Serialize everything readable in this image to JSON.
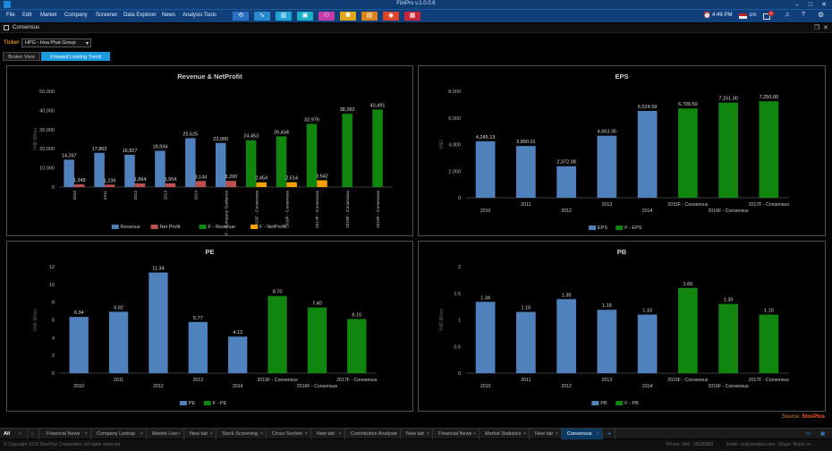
{
  "window": {
    "title": "FiinPro v.1.0.0.6"
  },
  "menu": [
    "File",
    "Edit",
    "Market",
    "Company",
    "Screener",
    "Data Explorer",
    "News",
    "Analysis Tools"
  ],
  "toolbar": [
    {
      "icon": "refresh-icon",
      "glyph": "⟲",
      "color": "#2a6fc2"
    },
    {
      "icon": "line-chart-icon",
      "glyph": "∿",
      "color": "#2a8ad0"
    },
    {
      "icon": "bar-growth-icon",
      "glyph": "▥",
      "color": "#22a3d6"
    },
    {
      "icon": "monitor-icon",
      "glyph": "▣",
      "color": "#1fb0c8"
    },
    {
      "icon": "people-icon",
      "glyph": "⚇",
      "color": "#c23aa7"
    },
    {
      "icon": "group-icon",
      "glyph": "⚉",
      "color": "#e0a61a"
    },
    {
      "icon": "briefcase-icon",
      "glyph": "▤",
      "color": "#d9821e"
    },
    {
      "icon": "target-icon",
      "glyph": "◉",
      "color": "#d8452a"
    },
    {
      "icon": "stats-icon",
      "glyph": "▦",
      "color": "#c6283a"
    }
  ],
  "topright": {
    "time": "4:49 PM",
    "lang": "EN",
    "notif": "1"
  },
  "panel": {
    "title": "Consensus"
  },
  "ticker": {
    "label": "Ticker",
    "value": "HPG - Hoa Phat Group"
  },
  "view_tabs": [
    "Broker View",
    "Forward Looking Trend"
  ],
  "colors": {
    "blue": "#4f81bd",
    "red": "#c0504d",
    "green": "#11860f",
    "orange": "#f5a000"
  },
  "source": {
    "prefix": "Source: ",
    "brand": "StoxPlus"
  },
  "bottom_tabs": [
    "Financial News",
    "Company Lookup",
    "Market Live",
    "New tab",
    "Stock Screening",
    "Cross Section",
    "New tab",
    "Contribution Analysis",
    "New tab",
    "Financial News",
    "Market Statistics",
    "New tab",
    "Consensus"
  ],
  "bottom_all": "All",
  "status": {
    "copyright": "© Copyright 2015 StoxPlus Corporation. All rights reserved",
    "phone": "Phone: 844 - 35620982",
    "email": "Email: cs@stoxplus.com",
    "skype": "Skype: fiinpro.cs"
  },
  "chart_data": [
    {
      "type": "bar",
      "title": "Revenue & NetProfit",
      "ylabel": "VND Billion",
      "ylim": [
        0,
        50000
      ],
      "yticks": [
        0,
        10000,
        20000,
        30000,
        40000,
        50000
      ],
      "categories": [
        "2010",
        "2011",
        "2012",
        "2013",
        "2014",
        "2014F - Company Guidance",
        "2015F - Consensus",
        "2016F - Consensus",
        "2017F - Consensus",
        "2018F - Consensus",
        "2019F - Consensus"
      ],
      "series": [
        {
          "name": "Revenue",
          "values": [
            14267,
            17852,
            16827,
            18934,
            25525,
            23000,
            null,
            null,
            null,
            null,
            null
          ]
        },
        {
          "name": "Net Profit",
          "values": [
            1349,
            1236,
            1894,
            1954,
            3144,
            3200,
            null,
            null,
            null,
            null,
            null
          ]
        },
        {
          "name": "F - Revenue",
          "values": [
            null,
            null,
            null,
            null,
            null,
            null,
            24453,
            26434,
            32979,
            38282,
            40491
          ]
        },
        {
          "name": "F - NetProfit",
          "values": [
            null,
            null,
            null,
            null,
            null,
            null,
            2454,
            2514,
            3542,
            null,
            null
          ]
        }
      ],
      "labels": {
        "Revenue": [
          "14,267",
          "17,852",
          "16,827",
          "18,934",
          "25,525",
          "23,000",
          null,
          null,
          null,
          null,
          null
        ],
        "Net Profit": [
          "1,349",
          "1,236",
          "1,894",
          "1,954",
          "3,144",
          "3,200",
          null,
          null,
          null,
          null,
          null
        ],
        "F - Revenue": [
          null,
          null,
          null,
          null,
          null,
          null,
          "24,453",
          "26,434",
          "32,979",
          "38,282",
          "40,491"
        ],
        "F - NetProfit": [
          null,
          null,
          null,
          null,
          null,
          null,
          "2,454",
          "2,514",
          "3,542",
          null,
          null
        ]
      },
      "legend": [
        "Revenue",
        "Net Profit",
        "F - Revenue",
        "F - NetProfit"
      ]
    },
    {
      "type": "bar",
      "title": "EPS",
      "ylabel": "VND",
      "ylim": [
        0,
        8000
      ],
      "yticks": [
        0,
        2000,
        4000,
        6000,
        8000
      ],
      "categories": [
        "2010",
        "2011",
        "2012",
        "2013",
        "2014",
        "2015F - Consensus",
        "2016F - Consensus",
        "2017F - Consensus"
      ],
      "series": [
        {
          "name": "EPS",
          "values": [
            4245.13,
            3890.01,
            2372.08,
            4663.35,
            6524.59,
            null,
            null,
            null
          ]
        },
        {
          "name": "F - EPS",
          "values": [
            null,
            null,
            null,
            null,
            null,
            6709.5,
            7151,
            7250
          ]
        }
      ],
      "labels": {
        "EPS": [
          "4,245.13",
          "3,890.01",
          "2,372.08",
          "4,663.35",
          "6,524.59",
          null,
          null,
          null
        ],
        "F - EPS": [
          null,
          null,
          null,
          null,
          null,
          "6,709.50",
          "7,151.00",
          "7,250.00"
        ]
      },
      "legend": [
        "EPS",
        "F - EPS"
      ]
    },
    {
      "type": "bar",
      "title": "PE",
      "ylabel": "VND Billion",
      "ylim": [
        0,
        12
      ],
      "yticks": [
        0,
        2,
        4,
        6,
        8,
        10,
        12
      ],
      "categories": [
        "2010",
        "2011",
        "2012",
        "2013",
        "2014",
        "2015F - Consensus",
        "2016F - Consensus",
        "2017F - Consensus"
      ],
      "series": [
        {
          "name": "PE",
          "values": [
            6.34,
            6.92,
            11.34,
            5.77,
            4.12,
            null,
            null,
            null
          ]
        },
        {
          "name": "F - PE",
          "values": [
            null,
            null,
            null,
            null,
            null,
            8.7,
            7.4,
            6.1
          ]
        }
      ],
      "labels": {
        "PE": [
          "6.34",
          "6.92",
          "11.34",
          "5.77",
          "4.12",
          null,
          null,
          null
        ],
        "F - PE": [
          null,
          null,
          null,
          null,
          null,
          "8.70",
          "7.40",
          "6.10"
        ]
      },
      "legend": [
        "PE",
        "F - PE"
      ]
    },
    {
      "type": "bar",
      "title": "PB",
      "ylabel": "VND Billion",
      "ylim": [
        0,
        2
      ],
      "yticks": [
        0,
        0.5,
        1,
        1.5,
        2
      ],
      "categories": [
        "2010",
        "2011",
        "2012",
        "2013",
        "2014",
        "2015F - Consensus",
        "2016F - Consensus",
        "2017F - Consensus"
      ],
      "series": [
        {
          "name": "PB",
          "values": [
            1.34,
            1.15,
            1.39,
            1.19,
            1.1,
            null,
            null,
            null
          ]
        },
        {
          "name": "F - PB",
          "values": [
            null,
            null,
            null,
            null,
            null,
            1.6,
            1.3,
            1.1
          ]
        }
      ],
      "labels": {
        "PB": [
          "1.34",
          "1.15",
          "1.39",
          "1.19",
          "1.10",
          null,
          null,
          null
        ],
        "F - PB": [
          null,
          null,
          null,
          null,
          null,
          "1.60",
          "1.30",
          "1.10"
        ]
      },
      "legend": [
        "PB",
        "F - PB"
      ]
    }
  ]
}
